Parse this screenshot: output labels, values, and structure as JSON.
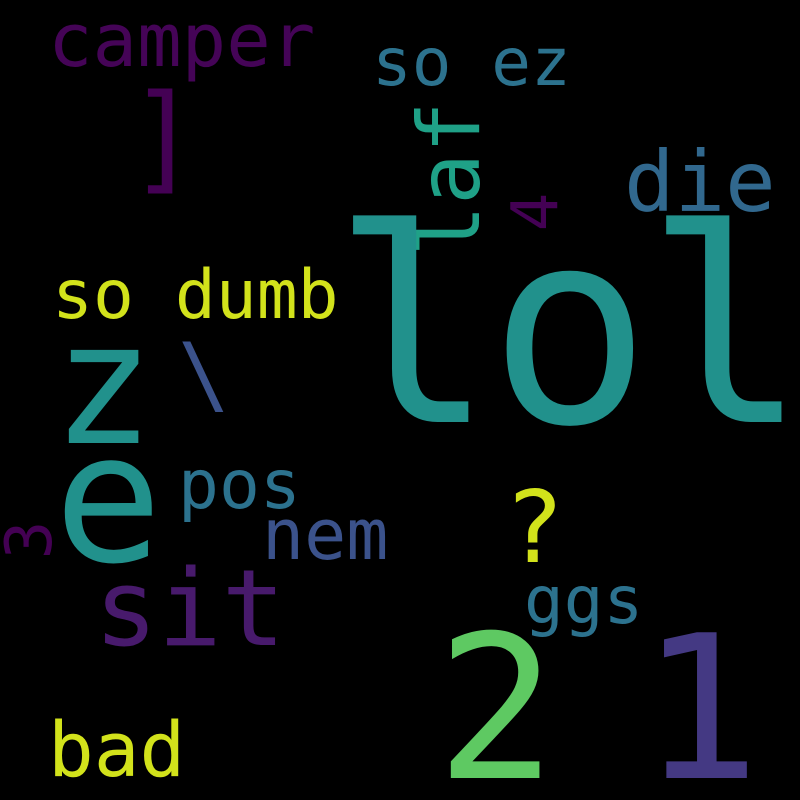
{
  "background_color": "#000000",
  "words": {
    "lol": "lol",
    "two": "2",
    "one": "1",
    "e": "e",
    "z": "z",
    "sit": "sit",
    "camper": "camper",
    "so_ez": "so ez",
    "die": "die",
    "laf": "laf",
    "four": "4",
    "bracket": "]",
    "so_dumb": "so dumb",
    "backslash": "\\",
    "pos": "pos",
    "nem": "nem",
    "question": "?",
    "three": "3",
    "ggs": "ggs",
    "bad": "bad"
  },
  "palette": {
    "teal": "#21918c",
    "green": "#5ec962",
    "indigo": "#443983",
    "purple": "#481a6c",
    "dark_purple": "#440154",
    "blue": "#2c728e",
    "steel_blue": "#31688e",
    "sea_green": "#1fa187",
    "yellow": "#d2e21b",
    "slate": "#3b528b"
  }
}
